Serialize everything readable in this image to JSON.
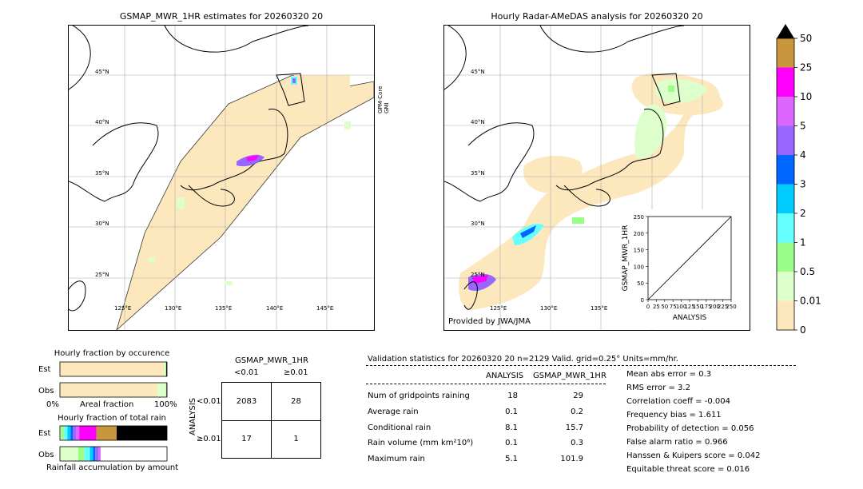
{
  "left_map": {
    "title": "GSMAP_MWR_1HR estimates for 20260320 20",
    "sensor_label": "GPM-Core\nGMI",
    "lat_labels": [
      "45°N",
      "40°N",
      "35°N",
      "30°N",
      "25°N"
    ],
    "lon_labels": [
      "125°E",
      "130°E",
      "135°E",
      "140°E",
      "145°E"
    ]
  },
  "right_map": {
    "title": "Hourly Radar-AMeDAS analysis for 20260320 20",
    "credit": "Provided by JWA/JMA",
    "lat_labels": [
      "45°N",
      "40°N",
      "35°N",
      "30°N",
      "25°N"
    ],
    "lon_labels": [
      "125°E",
      "130°E",
      "135°E"
    ]
  },
  "colorbar": {
    "labels": [
      "50",
      "25",
      "10",
      "5",
      "4",
      "3",
      "2",
      "1",
      "0.5",
      "0.01",
      "0"
    ],
    "colors": [
      "#c8963c",
      "#ff00ff",
      "#dd66ff",
      "#9966ff",
      "#0066ff",
      "#00ccff",
      "#66ffff",
      "#99ff88",
      "#ddffcc",
      "#fde8be"
    ],
    "over_color": "#000000"
  },
  "chart_data": [
    {
      "type": "scatter",
      "title": "",
      "xlabel": "ANALYSIS",
      "ylabel": "GSMAP_MWR_1HR",
      "xlim": [
        0,
        250
      ],
      "ylim": [
        0,
        250
      ],
      "xticks": [
        "0",
        "25",
        "50",
        "75",
        "100",
        "125",
        "150",
        "175",
        "200",
        "225",
        "250"
      ],
      "yticks": [
        "0",
        "50",
        "100",
        "150",
        "200",
        "250"
      ],
      "diagonal": true,
      "points": []
    },
    {
      "type": "bar",
      "title": "Hourly fraction by occurence",
      "categories": [
        "Est",
        "Obs"
      ],
      "xlabel": "Areal fraction",
      "xtick_left": "0%",
      "xtick_right": "100%",
      "series": [
        {
          "values": [
            0.975,
            0.91
          ],
          "color": "#fde8be"
        },
        {
          "values": [
            0.01,
            0.08
          ],
          "color": "#ddffcc"
        },
        {
          "values": [
            0.008,
            0.005
          ],
          "color": "#99ff88"
        },
        {
          "values": [
            0.007,
            0.005
          ],
          "color": "#000000"
        }
      ]
    },
    {
      "type": "bar",
      "title": "Hourly fraction of total rain",
      "categories": [
        "Est",
        "Obs"
      ],
      "xlabel": "Rainfall accumulation by amount",
      "series": [
        {
          "values": [
            0.0,
            0.0
          ],
          "color": "#fde8be"
        },
        {
          "values": [
            0.01,
            0.17
          ],
          "color": "#ddffcc"
        },
        {
          "values": [
            0.03,
            0.06
          ],
          "color": "#99ff88"
        },
        {
          "values": [
            0.03,
            0.05
          ],
          "color": "#66ffff"
        },
        {
          "values": [
            0.03,
            0.03
          ],
          "color": "#00ccff"
        },
        {
          "values": [
            0.02,
            0.02
          ],
          "color": "#0066ff"
        },
        {
          "values": [
            0.03,
            0.03
          ],
          "color": "#9966ff"
        },
        {
          "values": [
            0.03,
            0.02
          ],
          "color": "#dd66ff"
        },
        {
          "values": [
            0.16,
            0.0
          ],
          "color": "#ff00ff"
        },
        {
          "values": [
            0.19,
            0.0
          ],
          "color": "#c8963c"
        },
        {
          "values": [
            0.47,
            0.0
          ],
          "color": "#000000"
        }
      ]
    }
  ],
  "contingency": {
    "title": "GSMAP_MWR_1HR",
    "col_headers": [
      "<0.01",
      "≥0.01"
    ],
    "row_axis_label": "ANALYSIS",
    "row_headers": [
      "<0.01",
      "≥0.01"
    ],
    "cells": [
      [
        "2083",
        "28"
      ],
      [
        "17",
        "1"
      ]
    ]
  },
  "validation": {
    "header": "Validation statistics for 20260320 20  n=2129 Valid. grid=0.25° Units=mm/hr.",
    "col_analysis": "ANALYSIS",
    "col_gsmap": "GSMAP_MWR_1HR",
    "rows": [
      {
        "label": "Num of gridpoints raining",
        "analysis": "18",
        "gsmap": "29"
      },
      {
        "label": "Average rain",
        "analysis": "0.1",
        "gsmap": "0.2"
      },
      {
        "label": "Conditional rain",
        "analysis": "8.1",
        "gsmap": "15.7"
      },
      {
        "label": "Rain volume (mm km²10⁶)",
        "analysis": "0.1",
        "gsmap": "0.3"
      },
      {
        "label": "Maximum rain",
        "analysis": "5.1",
        "gsmap": "101.9"
      }
    ],
    "scores": [
      "Mean abs error =    0.3",
      "RMS error =    3.2",
      "Correlation coeff = -0.004",
      "Frequency bias =  1.611",
      "Probability of detection =  0.056",
      "False alarm ratio =  0.966",
      "Hanssen & Kuipers score =  0.042",
      "Equitable threat score =  0.016"
    ]
  }
}
